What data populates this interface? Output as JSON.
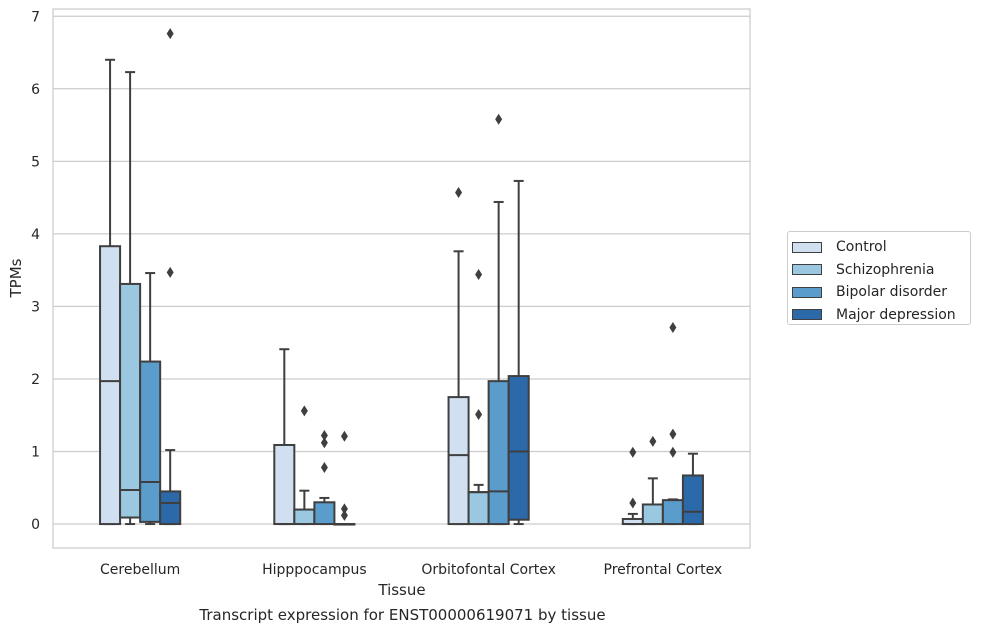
{
  "chart_data": {
    "type": "box",
    "xlabel": "Tissue",
    "ylabel": "TPMs",
    "caption": "Transcript expression for ENST00000619071 by tissue",
    "ylim": [
      -0.33,
      7.1
    ],
    "yticks": [
      "0",
      "1",
      "2",
      "3",
      "4",
      "5",
      "6",
      "7"
    ],
    "grid": true,
    "legend_position": "right",
    "categories": [
      "Cerebellum",
      "Hipppocampus",
      "Orbitofontal Cortex",
      "Prefrontal Cortex"
    ],
    "series": [
      {
        "name": "Control",
        "color": "#d0e0f1",
        "boxes": [
          {
            "lower": 0,
            "q1": 0,
            "median": 1.97,
            "q3": 3.83,
            "upper": 6.4,
            "outliers": []
          },
          {
            "lower": 0,
            "q1": 0,
            "median": 0,
            "q3": 1.09,
            "upper": 2.41,
            "outliers": []
          },
          {
            "lower": 0,
            "q1": 0,
            "median": 0.95,
            "q3": 1.75,
            "upper": 3.76,
            "outliers": [
              4.57
            ]
          },
          {
            "lower": 0,
            "q1": 0,
            "median": 0,
            "q3": 0.07,
            "upper": 0.14,
            "outliers": [
              0.29,
              0.99
            ]
          }
        ]
      },
      {
        "name": "Schizophrenia",
        "color": "#9ac8e0",
        "boxes": [
          {
            "lower": 0,
            "q1": 0.09,
            "median": 0.47,
            "q3": 3.31,
            "upper": 6.23,
            "outliers": []
          },
          {
            "lower": 0,
            "q1": 0,
            "median": 0,
            "q3": 0.2,
            "upper": 0.46,
            "outliers": [
              1.56
            ]
          },
          {
            "lower": 0,
            "q1": 0,
            "median": 0.44,
            "q3": 0.44,
            "upper": 0.54,
            "outliers": [
              1.51,
              3.44
            ]
          },
          {
            "lower": 0,
            "q1": 0,
            "median": 0,
            "q3": 0.27,
            "upper": 0.63,
            "outliers": [
              1.14
            ]
          }
        ]
      },
      {
        "name": "Bipolar disorder",
        "color": "#5a9ccc",
        "boxes": [
          {
            "lower": 0,
            "q1": 0.03,
            "median": 0.58,
            "q3": 2.24,
            "upper": 3.46,
            "outliers": []
          },
          {
            "lower": 0,
            "q1": 0,
            "median": 0,
            "q3": 0.3,
            "upper": 0.36,
            "outliers": [
              0.78,
              1.12,
              1.22
            ]
          },
          {
            "lower": 0,
            "q1": 0,
            "median": 0.45,
            "q3": 1.97,
            "upper": 4.44,
            "outliers": [
              5.58
            ]
          },
          {
            "lower": 0,
            "q1": 0,
            "median": 0,
            "q3": 0.33,
            "upper": 0.34,
            "outliers": [
              0.99,
              1.24,
              2.71
            ]
          }
        ]
      },
      {
        "name": "Major depression",
        "color": "#2b69a9",
        "boxes": [
          {
            "lower": 0,
            "q1": 0,
            "median": 0.29,
            "q3": 0.45,
            "upper": 1.02,
            "outliers": [
              3.47,
              6.76
            ]
          },
          {
            "lower": 0,
            "q1": 0,
            "median": 0,
            "q3": 0,
            "upper": 0,
            "outliers": [
              0.12,
              0.21,
              1.21
            ]
          },
          {
            "lower": 0,
            "q1": 0.06,
            "median": 1.0,
            "q3": 2.04,
            "upper": 4.73,
            "outliers": []
          },
          {
            "lower": 0,
            "q1": 0,
            "median": 0.17,
            "q3": 0.67,
            "upper": 0.97,
            "outliers": []
          }
        ]
      }
    ]
  }
}
